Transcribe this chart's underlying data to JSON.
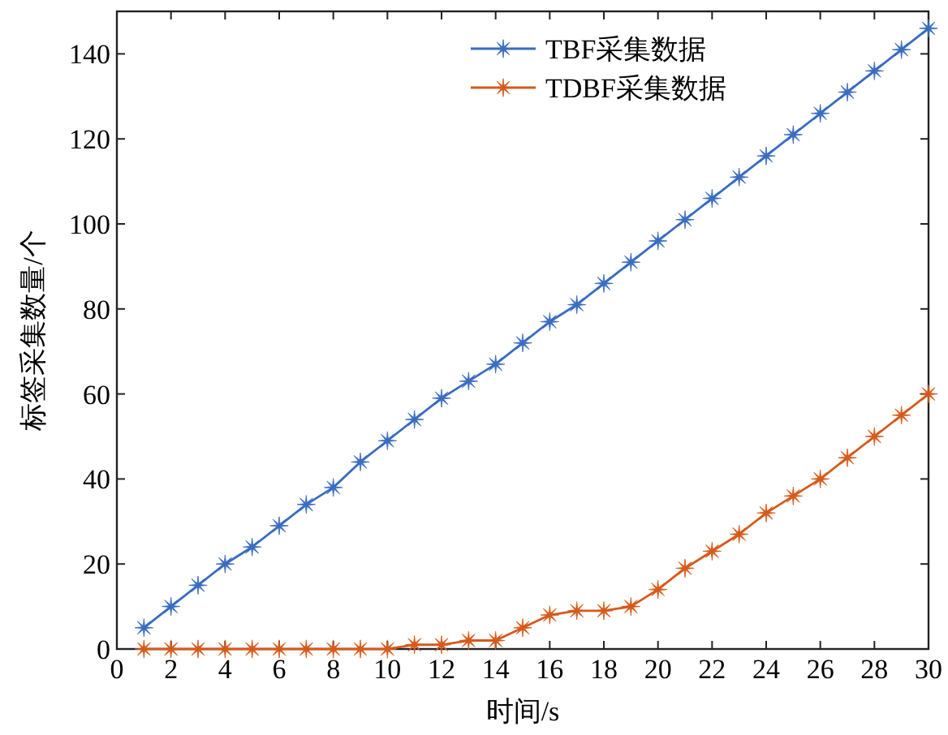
{
  "chart_data": {
    "type": "line",
    "xlabel": "时间/s",
    "ylabel": "标签采集数量/个",
    "x": [
      1,
      2,
      3,
      4,
      5,
      6,
      7,
      8,
      9,
      10,
      11,
      12,
      13,
      14,
      15,
      16,
      17,
      18,
      19,
      20,
      21,
      22,
      23,
      24,
      25,
      26,
      27,
      28,
      29,
      30
    ],
    "series": [
      {
        "name": "TBF采集数据",
        "color": "#3a6cc0",
        "values": [
          5,
          10,
          15,
          20,
          24,
          29,
          34,
          38,
          44,
          49,
          54,
          59,
          63,
          67,
          72,
          77,
          81,
          86,
          91,
          96,
          101,
          106,
          111,
          116,
          121,
          126,
          131,
          136,
          141,
          146
        ]
      },
      {
        "name": "TDBF采集数据",
        "color": "#d55a1c",
        "values": [
          0,
          0,
          0,
          0,
          0,
          0,
          0,
          0,
          0,
          0,
          1,
          1,
          2,
          2,
          5,
          8,
          9,
          9,
          10,
          14,
          19,
          23,
          27,
          32,
          36,
          40,
          45,
          50,
          55,
          60
        ]
      }
    ],
    "xlim": [
      0,
      30
    ],
    "ylim": [
      0,
      150
    ],
    "xticks": [
      0,
      2,
      4,
      6,
      8,
      10,
      12,
      14,
      16,
      18,
      20,
      22,
      24,
      26,
      28,
      30
    ],
    "yticks": [
      0,
      20,
      40,
      60,
      80,
      100,
      120,
      140
    ],
    "grid": false,
    "legend": "top right",
    "marker": "star",
    "line_style": "solid"
  }
}
